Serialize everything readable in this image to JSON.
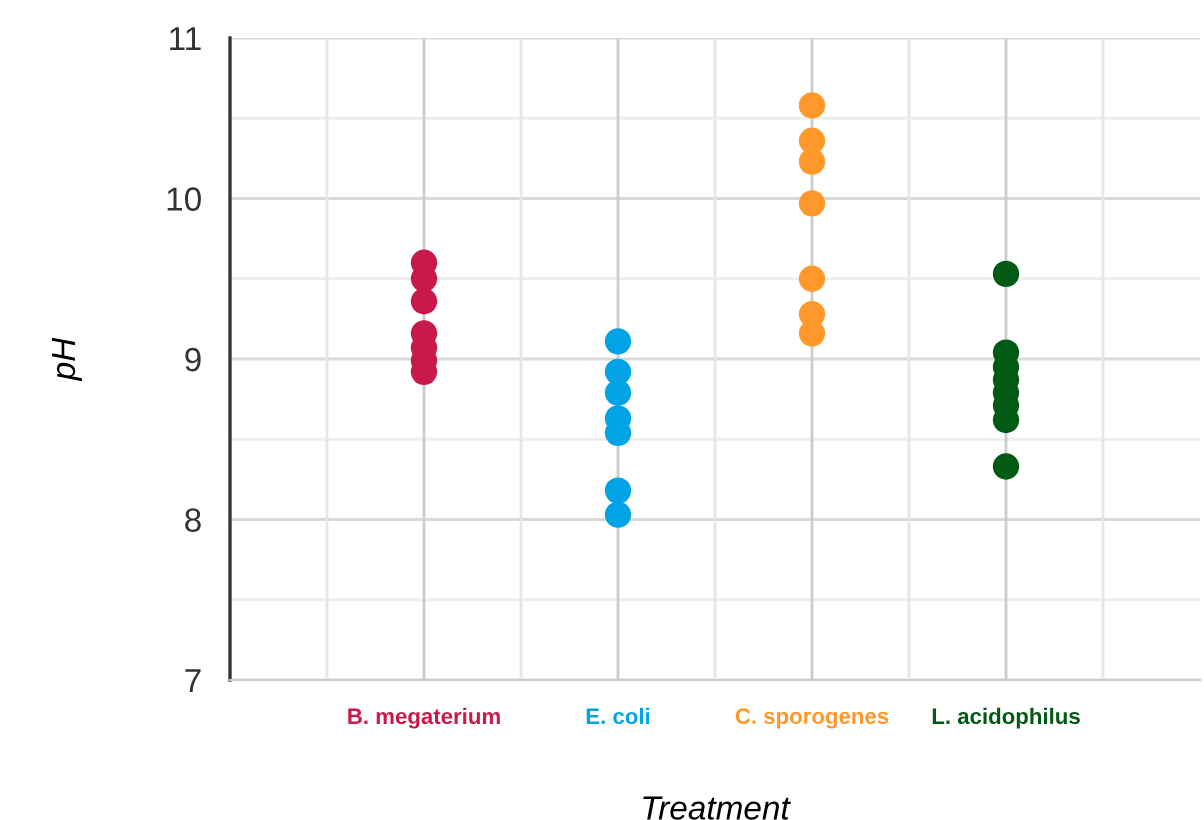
{
  "chart_data": {
    "type": "scatter",
    "xlabel": "Treatment",
    "ylabel": "pH",
    "categories": [
      "B. megaterium",
      "E. coli",
      "C. sporogenes",
      "L. acidophilus"
    ],
    "series": [
      {
        "color": "#c8194a",
        "x": [
          "B. megaterium",
          "B. megaterium",
          "B. megaterium",
          "B. megaterium",
          "B. megaterium",
          "B. megaterium",
          "B. megaterium"
        ],
        "values": [
          9.6,
          9.5,
          9.36,
          9.16,
          9.07,
          8.99,
          8.92
        ]
      },
      {
        "color": "#02a3e6",
        "x": [
          "E. coli",
          "E. coli",
          "E. coli",
          "E. coli",
          "E. coli",
          "E. coli",
          "E. coli"
        ],
        "values": [
          9.11,
          8.92,
          8.79,
          8.63,
          8.54,
          8.18,
          8.03
        ]
      },
      {
        "color": "#fe982b",
        "x": [
          "C. sporogenes",
          "C. sporogenes",
          "C. sporogenes",
          "C. sporogenes",
          "C. sporogenes",
          "C. sporogenes",
          "C. sporogenes"
        ],
        "values": [
          10.58,
          10.36,
          10.23,
          9.97,
          9.5,
          9.28,
          9.16
        ]
      },
      {
        "color": "#005a14",
        "x": [
          "L. acidophilus",
          "L. acidophilus",
          "L. acidophilus",
          "L. acidophilus",
          "L. acidophilus",
          "L. acidophilus",
          "L. acidophilus",
          "L. acidophilus"
        ],
        "values": [
          9.53,
          9.04,
          8.95,
          8.87,
          8.79,
          8.71,
          8.62,
          8.33
        ]
      }
    ],
    "ylim": [
      7,
      11
    ],
    "yticks": [
      7,
      {
        "value": 7.5,
        "label": null
      },
      8,
      {
        "value": 8.5,
        "label": null
      },
      9,
      {
        "value": 9.5,
        "label": null
      },
      10,
      {
        "value": 10.5,
        "label": null
      },
      11
    ],
    "grid": true,
    "marker": "circle",
    "legend": false
  }
}
